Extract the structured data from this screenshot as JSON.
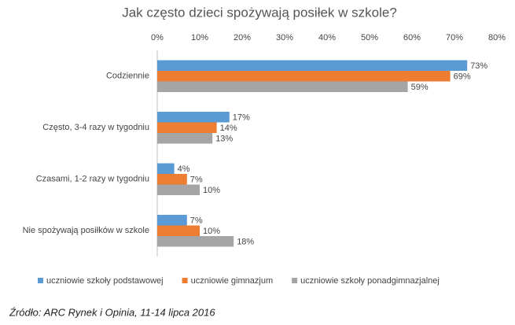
{
  "chart_data": {
    "type": "bar",
    "orientation": "horizontal",
    "title": "Jak często dzieci spożywają posiłek w szkole?",
    "categories": [
      "Codziennie",
      "Często, 3-4 razy w tygodniu",
      "Czasami, 1-2 razy w tygodniu",
      "Nie spożywają posiłków w szkole"
    ],
    "series": [
      {
        "name": "uczniowie szkoły podstawowej",
        "color": "#5b9bd5",
        "values": [
          73,
          17,
          4,
          7
        ],
        "value_labels": [
          "73%",
          "17%",
          "4%",
          "7%"
        ]
      },
      {
        "name": "uczniowie gimnazjum",
        "color": "#ed7d31",
        "values": [
          69,
          14,
          7,
          10
        ],
        "value_labels": [
          "69%",
          "14%",
          "7%",
          "10%"
        ]
      },
      {
        "name": "uczniowie szkoły ponadgimnazjalnej",
        "color": "#a5a5a5",
        "values": [
          59,
          13,
          10,
          18
        ],
        "value_labels": [
          "59%",
          "13%",
          "10%",
          "18%"
        ]
      }
    ],
    "xlim": [
      0,
      80
    ],
    "xticks": [
      {
        "value": 0,
        "label": "0%"
      },
      {
        "value": 10,
        "label": "10%"
      },
      {
        "value": 20,
        "label": "20%"
      },
      {
        "value": 30,
        "label": "30%"
      },
      {
        "value": 40,
        "label": "40%"
      },
      {
        "value": 50,
        "label": "50%"
      },
      {
        "value": 60,
        "label": "60%"
      },
      {
        "value": 70,
        "label": "70%"
      },
      {
        "value": 80,
        "label": "80%"
      }
    ],
    "grid": false,
    "legend": "bottom",
    "source": "Źródło: ARC Rynek i Opinia, 11-14 lipca 2016"
  }
}
